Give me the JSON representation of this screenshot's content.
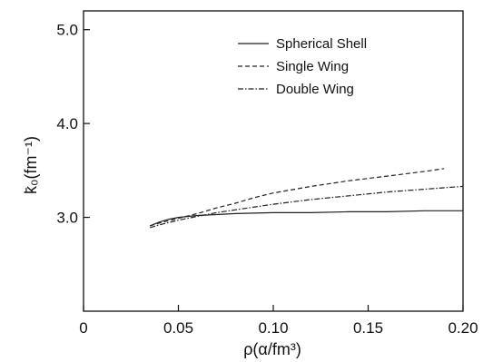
{
  "chart_data": {
    "type": "line",
    "xlabel": "ρ(α/fm³)",
    "ylabel": "k̄₀(fm⁻¹)",
    "xlim": [
      0,
      0.2
    ],
    "ylim": [
      2.0,
      5.2
    ],
    "x_ticks": [
      {
        "value": 0,
        "label": "0"
      },
      {
        "value": 0.05,
        "label": "0.05"
      },
      {
        "value": 0.1,
        "label": "0.10"
      },
      {
        "value": 0.15,
        "label": "0.15"
      },
      {
        "value": 0.2,
        "label": "0.20"
      }
    ],
    "y_ticks": [
      {
        "value": 3.0,
        "label": "3.0"
      },
      {
        "value": 4.0,
        "label": "4.0"
      },
      {
        "value": 5.0,
        "label": "5.0"
      }
    ],
    "grid": false,
    "legend_position": "top-right",
    "series": [
      {
        "name": "Spherical Shell",
        "line_style": "solid",
        "color": "#222222",
        "x": [
          0.035,
          0.04,
          0.045,
          0.05,
          0.06,
          0.07,
          0.08,
          0.1,
          0.12,
          0.14,
          0.16,
          0.18,
          0.2
        ],
        "y": [
          2.91,
          2.95,
          2.98,
          3.0,
          3.02,
          3.03,
          3.04,
          3.05,
          3.05,
          3.06,
          3.06,
          3.07,
          3.07
        ]
      },
      {
        "name": "Single Wing",
        "line_style": "dashed",
        "color": "#222222",
        "x": [
          0.035,
          0.04,
          0.05,
          0.06,
          0.07,
          0.08,
          0.09,
          0.1,
          0.12,
          0.14,
          0.16,
          0.18,
          0.19
        ],
        "y": [
          2.91,
          2.94,
          2.99,
          3.04,
          3.1,
          3.15,
          3.21,
          3.26,
          3.33,
          3.39,
          3.44,
          3.49,
          3.52
        ]
      },
      {
        "name": "Double Wing",
        "line_style": "dash-dot",
        "color": "#222222",
        "x": [
          0.035,
          0.04,
          0.05,
          0.06,
          0.07,
          0.08,
          0.1,
          0.12,
          0.14,
          0.16,
          0.18,
          0.2
        ],
        "y": [
          2.89,
          2.92,
          2.97,
          3.01,
          3.05,
          3.08,
          3.14,
          3.19,
          3.23,
          3.27,
          3.3,
          3.33
        ]
      }
    ]
  }
}
